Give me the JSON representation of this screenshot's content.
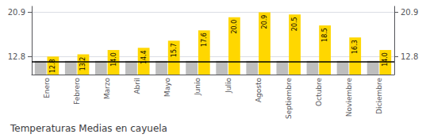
{
  "chart_data": {
    "type": "bar",
    "title": "Temperaturas Medias en cayuela",
    "categories": [
      "Enero",
      "Febrero",
      "Marzo",
      "Abril",
      "Mayo",
      "Junio",
      "Julio",
      "Agosto",
      "Septiembre",
      "Octubre",
      "Noviembre",
      "Diciembre"
    ],
    "series": [
      {
        "color": "#BEBEBE",
        "values": [
          12.0,
          12.0,
          12.0,
          12.0,
          12.0,
          12.0,
          12.0,
          12.0,
          12.0,
          12.0,
          12.0,
          12.0
        ]
      },
      {
        "color": "#FFD700",
        "values": [
          12.8,
          13.2,
          14.0,
          14.4,
          15.7,
          17.6,
          20.0,
          20.9,
          20.5,
          18.5,
          16.3,
          14.0
        ],
        "value_labels": [
          "12.8",
          "13.2",
          "14.0",
          "14.4",
          "15.7",
          "17.6",
          "20.0",
          "20.9",
          "20.5",
          "18.5",
          "16.3",
          "14.0"
        ],
        "data_labels": true
      }
    ],
    "ylim": [
      9.5,
      22.0
    ],
    "yticks": [
      12.8,
      20.9
    ],
    "y2lim": [
      9.5,
      22.0
    ],
    "y2ticks": [
      12.8,
      20.9
    ],
    "grid": true,
    "reference_line": {
      "y": 11.8,
      "color": "#000000"
    }
  }
}
